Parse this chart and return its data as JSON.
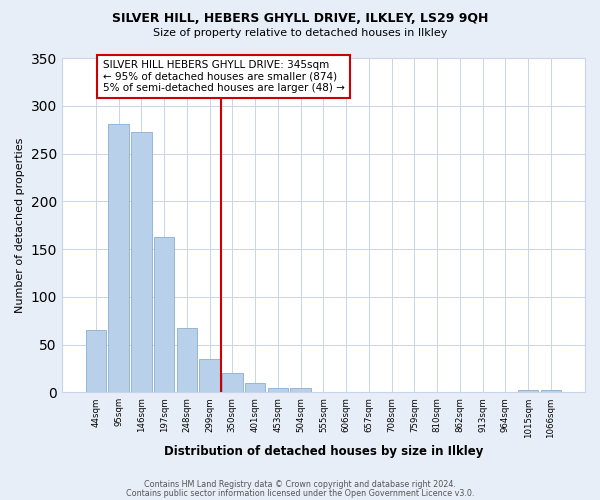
{
  "title1": "SILVER HILL, HEBERS GHYLL DRIVE, ILKLEY, LS29 9QH",
  "title2": "Size of property relative to detached houses in Ilkley",
  "xlabel": "Distribution of detached houses by size in Ilkley",
  "ylabel": "Number of detached properties",
  "bar_labels": [
    "44sqm",
    "95sqm",
    "146sqm",
    "197sqm",
    "248sqm",
    "299sqm",
    "350sqm",
    "401sqm",
    "453sqm",
    "504sqm",
    "555sqm",
    "606sqm",
    "657sqm",
    "708sqm",
    "759sqm",
    "810sqm",
    "862sqm",
    "913sqm",
    "964sqm",
    "1015sqm",
    "1066sqm"
  ],
  "bar_values": [
    65,
    281,
    273,
    163,
    67,
    35,
    20,
    10,
    5,
    4,
    0,
    0,
    0,
    0,
    0,
    0,
    0,
    0,
    0,
    2,
    2
  ],
  "bar_color": "#b8d0ea",
  "annotation_text_line1": "SILVER HILL HEBERS GHYLL DRIVE: 345sqm",
  "annotation_text_line2": "← 95% of detached houses are smaller (874)",
  "annotation_text_line3": "5% of semi-detached houses are larger (48) →",
  "footer1": "Contains HM Land Registry data © Crown copyright and database right 2024.",
  "footer2": "Contains public sector information licensed under the Open Government Licence v3.0.",
  "ylim": [
    0,
    350
  ],
  "yticks": [
    0,
    50,
    100,
    150,
    200,
    250,
    300,
    350
  ],
  "bg_color": "#e8eef8",
  "plot_bg_color": "#ffffff",
  "grid_color": "#c8d4e8",
  "red_line_x": 6
}
